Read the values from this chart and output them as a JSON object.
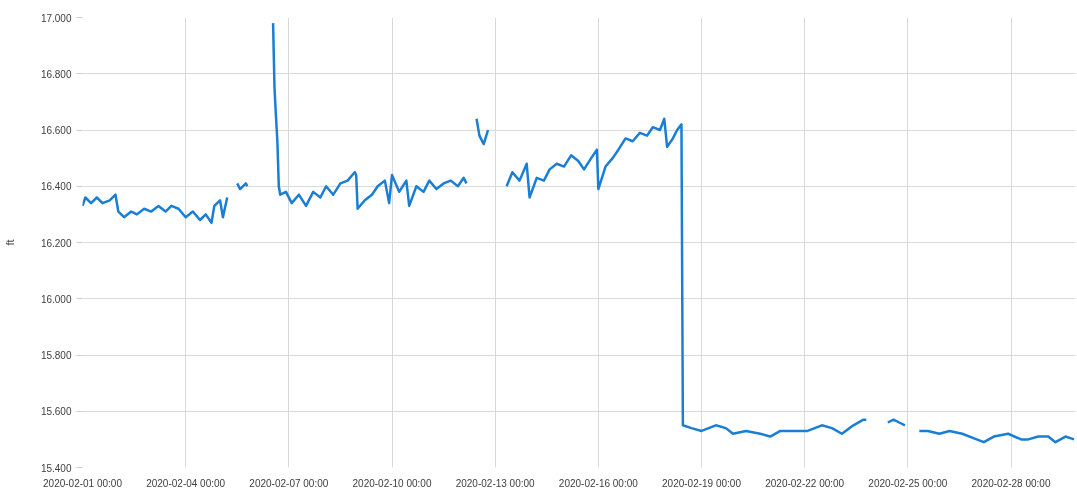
{
  "chart_data": {
    "type": "line",
    "ylabel": "ft",
    "grid": true,
    "marker": "none",
    "line_style": "solid",
    "xlim": [
      "2020-02-01T00:00",
      "2020-02-29T21:00"
    ],
    "xticks": [
      {
        "value": "2020-02-01",
        "label": "2020-02-01 00:00"
      },
      {
        "value": "2020-02-04",
        "label": "2020-02-04 00:00"
      },
      {
        "value": "2020-02-07",
        "label": "2020-02-07 00:00"
      },
      {
        "value": "2020-02-10",
        "label": "2020-02-10 00:00"
      },
      {
        "value": "2020-02-13",
        "label": "2020-02-13 00:00"
      },
      {
        "value": "2020-02-16",
        "label": "2020-02-16 00:00"
      },
      {
        "value": "2020-02-19",
        "label": "2020-02-19 00:00"
      },
      {
        "value": "2020-02-22",
        "label": "2020-02-22 00:00"
      },
      {
        "value": "2020-02-25",
        "label": "2020-02-25 00:00"
      },
      {
        "value": "2020-02-28",
        "label": "2020-02-28 00:00"
      }
    ],
    "ylim": [
      15.4,
      17.0
    ],
    "yticks": [
      {
        "value": 15.4,
        "label": "15.400"
      },
      {
        "value": 15.6,
        "label": "15.600"
      },
      {
        "value": 15.8,
        "label": "15.800"
      },
      {
        "value": 16.0,
        "label": "16.000"
      },
      {
        "value": 16.2,
        "label": "16.200"
      },
      {
        "value": 16.4,
        "label": "16.400"
      },
      {
        "value": 16.6,
        "label": "16.600"
      },
      {
        "value": 16.8,
        "label": "16.800"
      },
      {
        "value": 17.0,
        "label": "17.000"
      }
    ],
    "series": [
      {
        "color": "#1a7fd4",
        "x": [
          "2020-02-01T00:00",
          "2020-02-01T02:00",
          "2020-02-01T06:00",
          "2020-02-01T10:00",
          "2020-02-01T14:00",
          "2020-02-01T19:00",
          "2020-02-01T23:00",
          "2020-02-02T01:00",
          "2020-02-02T05:00",
          "2020-02-02T10:00",
          "2020-02-02T14:00",
          "2020-02-02T19:00",
          "2020-02-03T00:00",
          "2020-02-03T05:00",
          "2020-02-03T10:00",
          "2020-02-03T14:00",
          "2020-02-03T19:00",
          "2020-02-04T00:00",
          "2020-02-04T05:00",
          "2020-02-04T10:00",
          "2020-02-04T14:00",
          "2020-02-04T18:00",
          "2020-02-04T20:00",
          "2020-02-05T00:00",
          "2020-02-05T02:00",
          "2020-02-05T05:00",
          "2020-02-05T08:00",
          "2020-02-05T12:00",
          "2020-02-05T14:00",
          "2020-02-05T18:00",
          "2020-02-05T19:00",
          "2020-02-06T00:00",
          "2020-02-06T13:00",
          "2020-02-06T14:00",
          "2020-02-06T15:00",
          "2020-02-06T16:00",
          "2020-02-06T17:00",
          "2020-02-06T18:00",
          "2020-02-06T22:00",
          "2020-02-07T02:00",
          "2020-02-07T07:00",
          "2020-02-07T12:00",
          "2020-02-07T17:00",
          "2020-02-07T22:00",
          "2020-02-08T02:00",
          "2020-02-08T07:00",
          "2020-02-08T12:00",
          "2020-02-08T17:00",
          "2020-02-08T22:00",
          "2020-02-08T23:00",
          "2020-02-09T00:00",
          "2020-02-09T05:00",
          "2020-02-09T10:00",
          "2020-02-09T14:00",
          "2020-02-09T19:00",
          "2020-02-09T22:00",
          "2020-02-10T00:00",
          "2020-02-10T05:00",
          "2020-02-10T10:00",
          "2020-02-10T12:00",
          "2020-02-10T17:00",
          "2020-02-10T22:00",
          "2020-02-11T02:00",
          "2020-02-11T07:00",
          "2020-02-11T12:00",
          "2020-02-11T17:00",
          "2020-02-11T22:00",
          "2020-02-12T02:00",
          "2020-02-12T04:00",
          "2020-02-12T08:00",
          "2020-02-12T11:00",
          "2020-02-12T13:00",
          "2020-02-12T16:00",
          "2020-02-12T19:00",
          "2020-02-13T00:00",
          "2020-02-13T08:00",
          "2020-02-13T12:00",
          "2020-02-13T17:00",
          "2020-02-13T22:00",
          "2020-02-14T00:00",
          "2020-02-14T05:00",
          "2020-02-14T10:00",
          "2020-02-14T14:00",
          "2020-02-14T19:00",
          "2020-02-15T00:00",
          "2020-02-15T05:00",
          "2020-02-15T10:00",
          "2020-02-15T14:00",
          "2020-02-15T19:00",
          "2020-02-15T23:00",
          "2020-02-16T00:00",
          "2020-02-16T05:00",
          "2020-02-16T10:00",
          "2020-02-16T14:00",
          "2020-02-16T19:00",
          "2020-02-17T00:00",
          "2020-02-17T05:00",
          "2020-02-17T10:00",
          "2020-02-17T14:00",
          "2020-02-17T19:00",
          "2020-02-17T22:00",
          "2020-02-18T00:00",
          "2020-02-18T04:00",
          "2020-02-18T07:00",
          "2020-02-18T10:00",
          "2020-02-18T11:00",
          "2020-02-18T17:00",
          "2020-02-19T00:00",
          "2020-02-19T10:00",
          "2020-02-19T17:00",
          "2020-02-19T22:00",
          "2020-02-20T07:00",
          "2020-02-20T17:00",
          "2020-02-21T00:00",
          "2020-02-21T07:00",
          "2020-02-21T17:00",
          "2020-02-22T02:00",
          "2020-02-22T12:00",
          "2020-02-22T19:00",
          "2020-02-23T02:00",
          "2020-02-23T10:00",
          "2020-02-23T17:00",
          "2020-02-23T19:00",
          "2020-02-24T00:00",
          "2020-02-24T10:00",
          "2020-02-24T14:00",
          "2020-02-24T18:00",
          "2020-02-24T22:00",
          "2020-02-25T04:00",
          "2020-02-25T08:00",
          "2020-02-25T14:00",
          "2020-02-25T22:00",
          "2020-02-26T05:00",
          "2020-02-26T14:00",
          "2020-02-27T00:00",
          "2020-02-27T05:00",
          "2020-02-27T12:00",
          "2020-02-27T22:00",
          "2020-02-28T07:00",
          "2020-02-28T12:00",
          "2020-02-28T19:00",
          "2020-02-29T02:00",
          "2020-02-29T07:00",
          "2020-02-29T14:00",
          "2020-02-29T20:00"
        ],
        "values": [
          16.33,
          16.36,
          16.34,
          16.36,
          16.34,
          16.35,
          16.37,
          16.31,
          16.29,
          16.31,
          16.3,
          16.32,
          16.31,
          16.33,
          16.31,
          16.33,
          16.32,
          16.29,
          16.31,
          16.28,
          16.3,
          16.27,
          16.33,
          16.35,
          16.29,
          16.36,
          null,
          16.41,
          16.39,
          16.41,
          16.4,
          null,
          16.98,
          16.75,
          16.65,
          16.56,
          16.4,
          16.37,
          16.38,
          16.34,
          16.37,
          16.33,
          16.38,
          16.36,
          16.4,
          16.37,
          16.41,
          16.42,
          16.45,
          16.44,
          16.32,
          16.35,
          16.37,
          16.4,
          16.42,
          16.34,
          16.44,
          16.38,
          16.42,
          16.33,
          16.4,
          16.38,
          16.42,
          16.39,
          16.41,
          16.42,
          16.4,
          16.43,
          16.41,
          null,
          16.64,
          16.58,
          16.55,
          16.6,
          null,
          16.4,
          16.45,
          16.42,
          16.48,
          16.36,
          16.43,
          16.42,
          16.46,
          16.48,
          16.47,
          16.51,
          16.49,
          16.46,
          16.5,
          16.53,
          16.39,
          16.47,
          16.5,
          16.53,
          16.57,
          16.56,
          16.59,
          16.58,
          16.61,
          16.6,
          16.64,
          16.54,
          16.57,
          16.6,
          16.62,
          15.55,
          15.54,
          15.53,
          15.55,
          15.54,
          15.52,
          15.53,
          15.52,
          15.51,
          15.53,
          15.53,
          15.53,
          15.55,
          15.54,
          15.52,
          15.55,
          15.57,
          15.57,
          null,
          15.56,
          15.57,
          15.56,
          15.55,
          null,
          15.53,
          15.53,
          15.52,
          15.53,
          15.52,
          15.5,
          15.49,
          15.51,
          15.52,
          15.5,
          15.5,
          15.51,
          15.51,
          15.49,
          15.51,
          15.5
        ]
      }
    ]
  }
}
